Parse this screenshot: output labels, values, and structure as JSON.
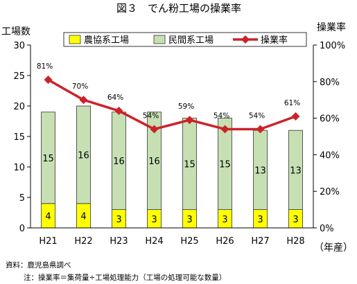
{
  "figure": {
    "title": "図３　でん粉工場の操業率",
    "source_note": "資料：鹿児島県調べ",
    "formula_note": "注：操業率＝集荷量÷工場処理能力（工場の処理可能な数量）"
  },
  "chart_data": {
    "type": "bar",
    "stacked": true,
    "title": "図３　でん粉工場の操業率",
    "ylabel_left": "工場数",
    "ylabel_right": "操業率",
    "xunit_label": "（年産）",
    "categories": [
      "H21",
      "H22",
      "H23",
      "H24",
      "H25",
      "H26",
      "H27",
      "H28"
    ],
    "ylim": [
      0,
      30
    ],
    "yticks": [
      "0",
      "5",
      "10",
      "15",
      "20",
      "25",
      "30"
    ],
    "y2lim": [
      0,
      100
    ],
    "y2ticks": [
      "0%",
      "20%",
      "40%",
      "60%",
      "80%",
      "100%"
    ],
    "series": [
      {
        "name": "農協系工場",
        "kind": "bar",
        "color": "#ffff00",
        "values": [
          4,
          4,
          3,
          3,
          3,
          3,
          3,
          3
        ]
      },
      {
        "name": "民間系工場",
        "kind": "bar",
        "color": "#c6e0b4",
        "values": [
          15,
          16,
          16,
          16,
          15,
          15,
          13,
          13
        ]
      },
      {
        "name": "操業率",
        "kind": "line",
        "axis": "right",
        "color": "#cc2229",
        "values": [
          81,
          70,
          64,
          54,
          59,
          54,
          54,
          61
        ],
        "labels": [
          "81%",
          "70%",
          "64%",
          "54%",
          "59%",
          "54%",
          "54%",
          "61%"
        ]
      }
    ],
    "legend_position": "top",
    "grid": false
  }
}
